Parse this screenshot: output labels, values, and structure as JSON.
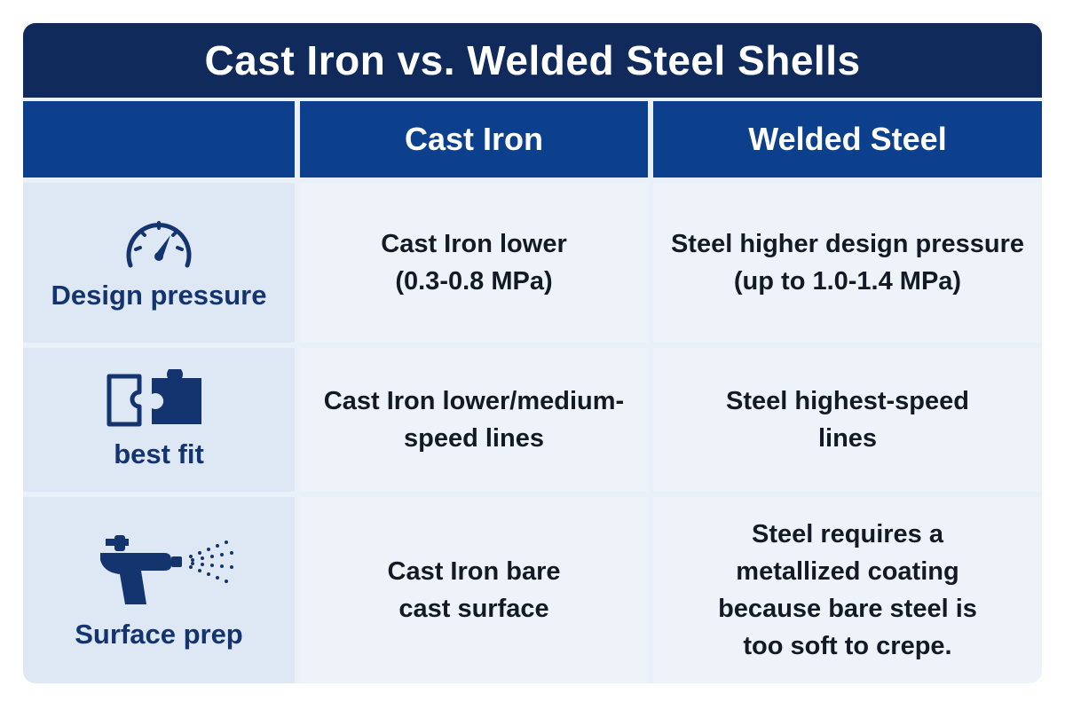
{
  "title": "Cast Iron vs. Welded Steel Shells",
  "headers": {
    "col1": "Cast Iron",
    "col2": "Welded Steel"
  },
  "rows": [
    {
      "label": "Design pressure",
      "icon": "gauge-icon",
      "cast_iron": "Cast Iron lower\n(0.3-0.8 MPa)",
      "welded_steel": "Steel higher design pressure\n(up to 1.0-1.4 MPa)"
    },
    {
      "label": "best fit",
      "icon": "puzzle-icon",
      "cast_iron": "Cast Iron lower/medium-\nspeed lines",
      "welded_steel": "Steel highest-speed\nlines"
    },
    {
      "label": "Surface prep",
      "icon": "spray-gun-icon",
      "cast_iron": "Cast Iron bare\ncast surface",
      "welded_steel": "Steel requires a\nmetallized coating\nbecause bare steel is\ntoo soft to crepe."
    }
  ],
  "colors": {
    "title_bg": "#102a5c",
    "header_bg": "#0c3f8c",
    "label_text": "#14346f",
    "label_bg": "#dde8f4",
    "cell_bg": "#eef3f9"
  }
}
